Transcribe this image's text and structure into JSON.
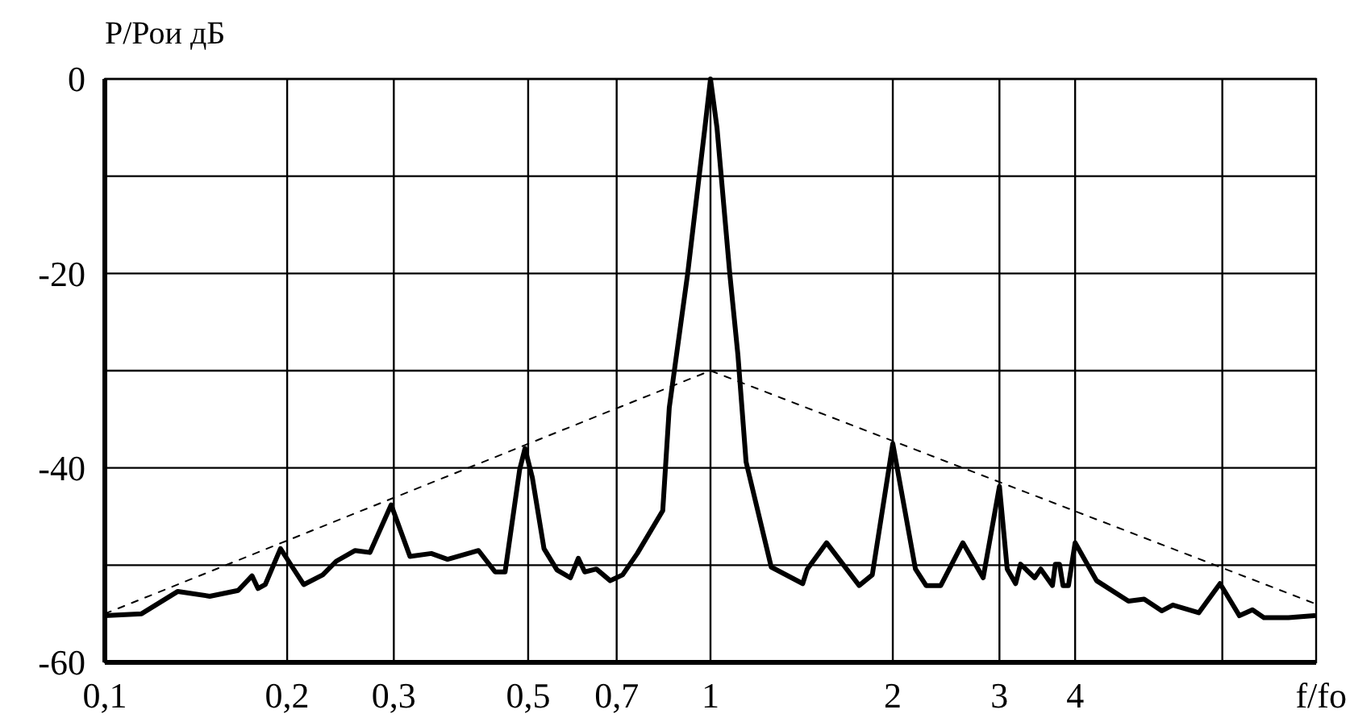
{
  "chart_data": {
    "type": "line",
    "xlabel": "f/fo",
    "ylabel": "Р/Рои дБ",
    "log": "x",
    "grid": true,
    "xlim": [
      0.1,
      10
    ],
    "xticks": [
      {
        "value": 0.1,
        "label": "0,1"
      },
      {
        "value": 0.2,
        "label": "0,2"
      },
      {
        "value": 0.3,
        "label": "0,3"
      },
      {
        "value": 0.5,
        "label": "0,5"
      },
      {
        "value": 0.7,
        "label": "0,7"
      },
      1,
      2,
      3,
      4,
      {
        "value": 7,
        "label": null
      }
    ],
    "ylim": [
      -60,
      0
    ],
    "yticks": [
      0,
      {
        "value": -10,
        "label": null
      },
      -20,
      {
        "value": -30,
        "label": null
      },
      -40,
      {
        "value": -50,
        "label": null
      },
      -60
    ],
    "series": [
      {
        "color": "#000000",
        "line_style": "solid",
        "x": [
          0.1,
          0.115,
          0.132,
          0.149,
          0.166,
          0.175,
          0.179,
          0.184,
          0.195,
          0.204,
          0.213,
          0.229,
          0.241,
          0.259,
          0.274,
          0.297,
          0.319,
          0.346,
          0.368,
          0.414,
          0.441,
          0.458,
          0.484,
          0.494,
          0.508,
          0.531,
          0.558,
          0.587,
          0.605,
          0.62,
          0.648,
          0.683,
          0.716,
          0.757,
          0.834,
          0.855,
          0.917,
          0.979,
          1,
          1.025,
          1.076,
          1.11,
          1.145,
          1.26,
          1.42,
          1.445,
          1.555,
          1.76,
          1.85,
          2,
          2.18,
          2.27,
          2.4,
          2.61,
          2.82,
          3,
          3.09,
          3.19,
          3.25,
          3.43,
          3.51,
          3.67,
          3.71,
          3.77,
          3.82,
          3.9,
          4,
          4.34,
          4.9,
          5.2,
          5.56,
          5.8,
          6.4,
          6.94,
          7.47,
          7.85,
          8.2,
          9,
          9.93
        ],
        "values": [
          -55.2,
          -55,
          -52.7,
          -53.2,
          -52.6,
          -51.1,
          -52.4,
          -52,
          -48.3,
          -50.2,
          -52,
          -51,
          -49.6,
          -48.5,
          -48.7,
          -43.8,
          -49.1,
          -48.8,
          -49.4,
          -48.5,
          -50.7,
          -50.7,
          -40.2,
          -38,
          -41,
          -48.3,
          -50.5,
          -51.3,
          -49.3,
          -50.7,
          -50.4,
          -51.6,
          -51,
          -48.8,
          -44.4,
          -33.8,
          -20,
          -5,
          0,
          -5,
          -20,
          -28.4,
          -39.4,
          -50.2,
          -51.9,
          -50.4,
          -47.7,
          -52.1,
          -51,
          -37.5,
          -50.4,
          -52.1,
          -52.1,
          -47.7,
          -51.3,
          -41.9,
          -50.4,
          -51.9,
          -49.9,
          -51.3,
          -50.4,
          -52.1,
          -49.9,
          -49.9,
          -52.1,
          -52.1,
          -47.7,
          -51.6,
          -53.7,
          -53.5,
          -54.7,
          -54.1,
          -54.9,
          -51.9,
          -55.2,
          -54.6,
          -55.4,
          -55.4,
          -55.2
        ]
      },
      {
        "color": "#000000",
        "line_style": "dashed",
        "x": [
          0.1,
          1,
          10
        ],
        "values": [
          -55,
          -30,
          -54
        ]
      }
    ]
  }
}
